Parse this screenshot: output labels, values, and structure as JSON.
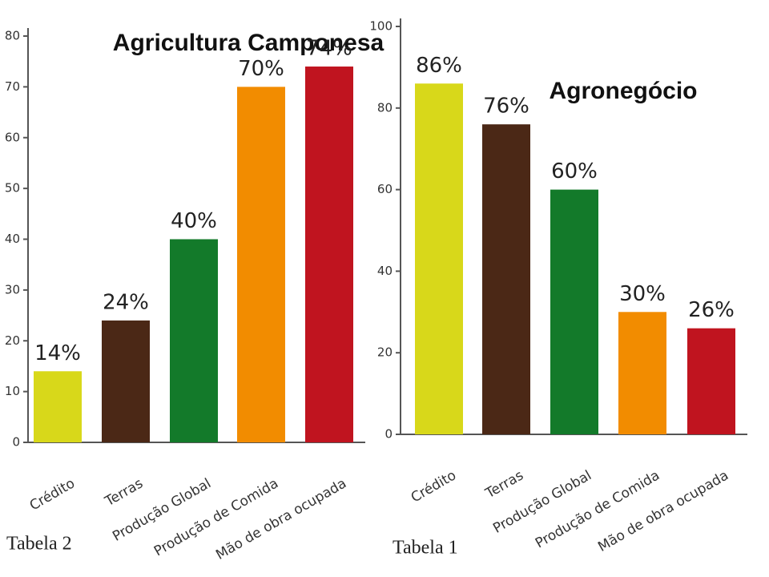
{
  "chart_data": [
    {
      "type": "bar",
      "title": "Agricultura Camponesa",
      "caption": "Tabela 2",
      "categories": [
        "Crédito",
        "Terras",
        "Produção Global",
        "Produção de Comida",
        "Mão de obra ocupada"
      ],
      "values": [
        14,
        24,
        40,
        70,
        74
      ],
      "value_labels": [
        "14%",
        "24%",
        "40%",
        "70%",
        "74%"
      ],
      "colors": [
        "#d8d81a",
        "#4b2816",
        "#137a2a",
        "#f28c00",
        "#c0141f"
      ],
      "ylim": [
        0,
        80
      ],
      "yticks": [
        0,
        10,
        20,
        30,
        40,
        50,
        60,
        70,
        80
      ]
    },
    {
      "type": "bar",
      "title": "Agronegócio",
      "caption": "Tabela 1",
      "categories": [
        "Crédito",
        "Terras",
        "Produção Global",
        "Produção de Comida",
        "Mão de obra ocupada"
      ],
      "values": [
        86,
        76,
        60,
        30,
        26
      ],
      "value_labels": [
        "86%",
        "76%",
        "60%",
        "30%",
        "26%"
      ],
      "colors": [
        "#d8d81a",
        "#4b2816",
        "#137a2a",
        "#f28c00",
        "#c0141f"
      ],
      "ylim": [
        0,
        100
      ],
      "yticks": [
        0,
        20,
        40,
        60,
        80,
        100
      ]
    }
  ]
}
